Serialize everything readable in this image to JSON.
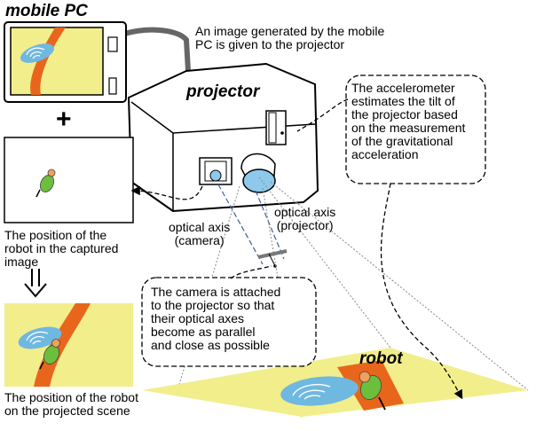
{
  "labels": {
    "mobile_pc": "mobile PC",
    "projector": "projector",
    "robot": "robot",
    "plus": "+",
    "image_generated": [
      "An image generated by the mobile",
      "PC is given to the projector"
    ],
    "accelerometer": [
      "The accelerometer",
      "estimates the tilt of",
      "the projector based",
      "on the measurement",
      "of the gravitational",
      "acceleration"
    ],
    "robot_position_captured": [
      "The position of the",
      "robot in the captured",
      "image"
    ],
    "optical_axis_camera": [
      "optical axis",
      "(camera)"
    ],
    "optical_axis_projector": [
      "optical axis",
      "(projector)"
    ],
    "camera_attached": [
      "The camera is attached",
      "to the projector so that",
      "their optical axes",
      "become  as parallel",
      "and close as possible"
    ],
    "robot_position_projected": [
      "The position of the robot",
      "on the projected scene"
    ]
  },
  "colors": {
    "screen_yellow": "#f2ee8c",
    "stripe_orange": "#e8661c",
    "lens_blue": "#8ec9ec",
    "ellipse_blue": "#6fb8e0",
    "robot_green": "#6cbf3c",
    "robot_orange": "#f0a15a",
    "tv_frame": "#ffffff",
    "cable_gray": "#666666",
    "axis_blue": "#3f5f9f"
  }
}
